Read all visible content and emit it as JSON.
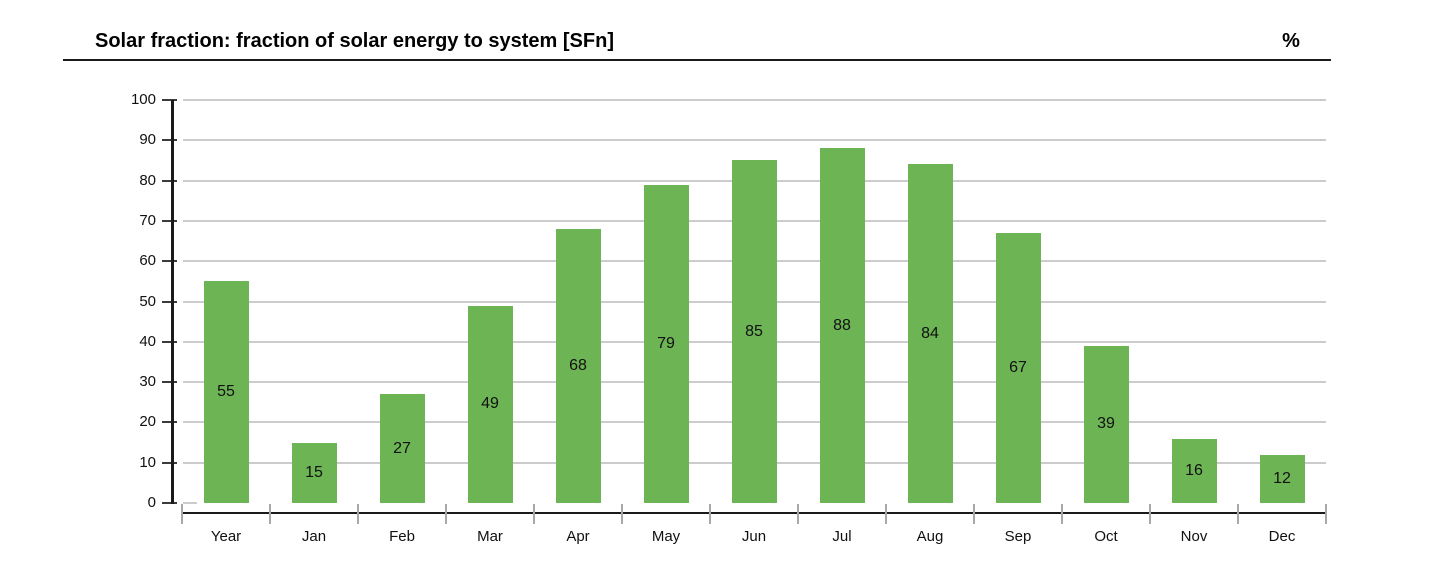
{
  "header": {
    "title": "Solar fraction: fraction of solar energy to system [SFn]",
    "unit": "%"
  },
  "chart_data": {
    "type": "bar",
    "title": "Solar fraction: fraction of solar energy to system [SFn]",
    "unit": "%",
    "categories": [
      "Year",
      "Jan",
      "Feb",
      "Mar",
      "Apr",
      "May",
      "Jun",
      "Jul",
      "Aug",
      "Sep",
      "Oct",
      "Nov",
      "Dec"
    ],
    "values": [
      55,
      15,
      27,
      49,
      68,
      79,
      85,
      88,
      84,
      67,
      39,
      16,
      12
    ],
    "xlabel": "",
    "ylabel": "",
    "ylim": [
      0,
      100
    ],
    "ytick_step": 10,
    "grid": true,
    "legend_position": "none",
    "bar_color": "#6CB454",
    "value_label_color": "#111111",
    "value_label_position": "center-of-bar",
    "gridline_color": "#cccccc",
    "axis_color": "#1a1a1a"
  }
}
